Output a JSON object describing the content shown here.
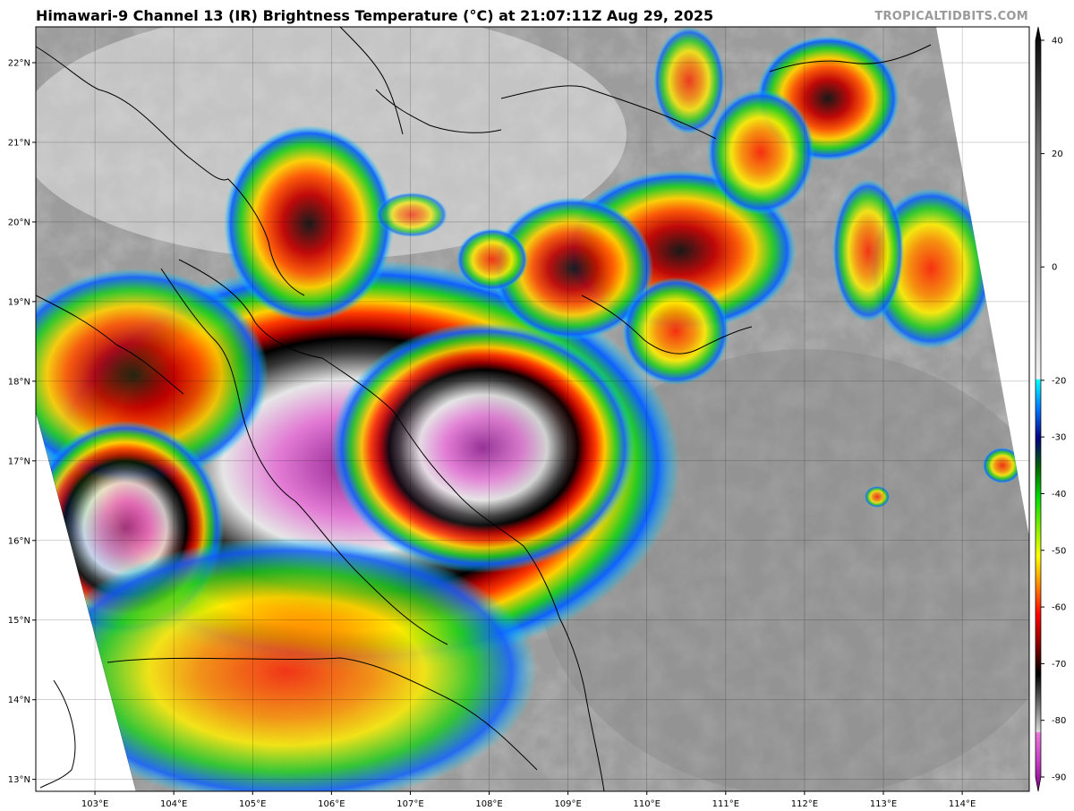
{
  "header": {
    "title": "Himawari-9 Channel 13 (IR) Brightness Temperature (°C) at 21:07:11Z Aug 29, 2025",
    "credit": "TROPICALTIDBITS.COM"
  },
  "map": {
    "lon_range": [
      102.25,
      114.85
    ],
    "lat_range": [
      12.85,
      22.45
    ],
    "lon_ticks": [
      "103°E",
      "104°E",
      "105°E",
      "106°E",
      "107°E",
      "108°E",
      "109°E",
      "110°E",
      "111°E",
      "112°E",
      "113°E",
      "114°E"
    ],
    "lat_ticks": [
      "13°N",
      "14°N",
      "15°N",
      "16°N",
      "17°N",
      "18°N",
      "19°N",
      "20°N",
      "21°N",
      "22°N"
    ],
    "grid": true
  },
  "colorbar": {
    "range": [
      -90,
      40
    ],
    "tick_labels": [
      "40",
      "20",
      "0",
      "-20",
      "-30",
      "-40",
      "-50",
      "-60",
      "-70",
      "-80",
      "-90"
    ],
    "stops": [
      {
        "t": -90,
        "color": "#7a007a"
      },
      {
        "t": -85,
        "color": "#c33cc3"
      },
      {
        "t": -80,
        "color": "#ea7ad8"
      },
      {
        "t": -79.9,
        "color": "#d8d8d8"
      },
      {
        "t": -72,
        "color": "#2a2a2a"
      },
      {
        "t": -70,
        "color": "#000000"
      },
      {
        "t": -65,
        "color": "#8b0000"
      },
      {
        "t": -60,
        "color": "#ff0000"
      },
      {
        "t": -55,
        "color": "#ff8800"
      },
      {
        "t": -50,
        "color": "#ffff00"
      },
      {
        "t": -40,
        "color": "#00dd00"
      },
      {
        "t": -35,
        "color": "#006600"
      },
      {
        "t": -30,
        "color": "#000080"
      },
      {
        "t": -25,
        "color": "#0077ff"
      },
      {
        "t": -20,
        "color": "#00ffff"
      },
      {
        "t": -19.9,
        "color": "#f2f2f2"
      },
      {
        "t": 20,
        "color": "#707070"
      },
      {
        "t": 40,
        "color": "#000000"
      }
    ]
  }
}
